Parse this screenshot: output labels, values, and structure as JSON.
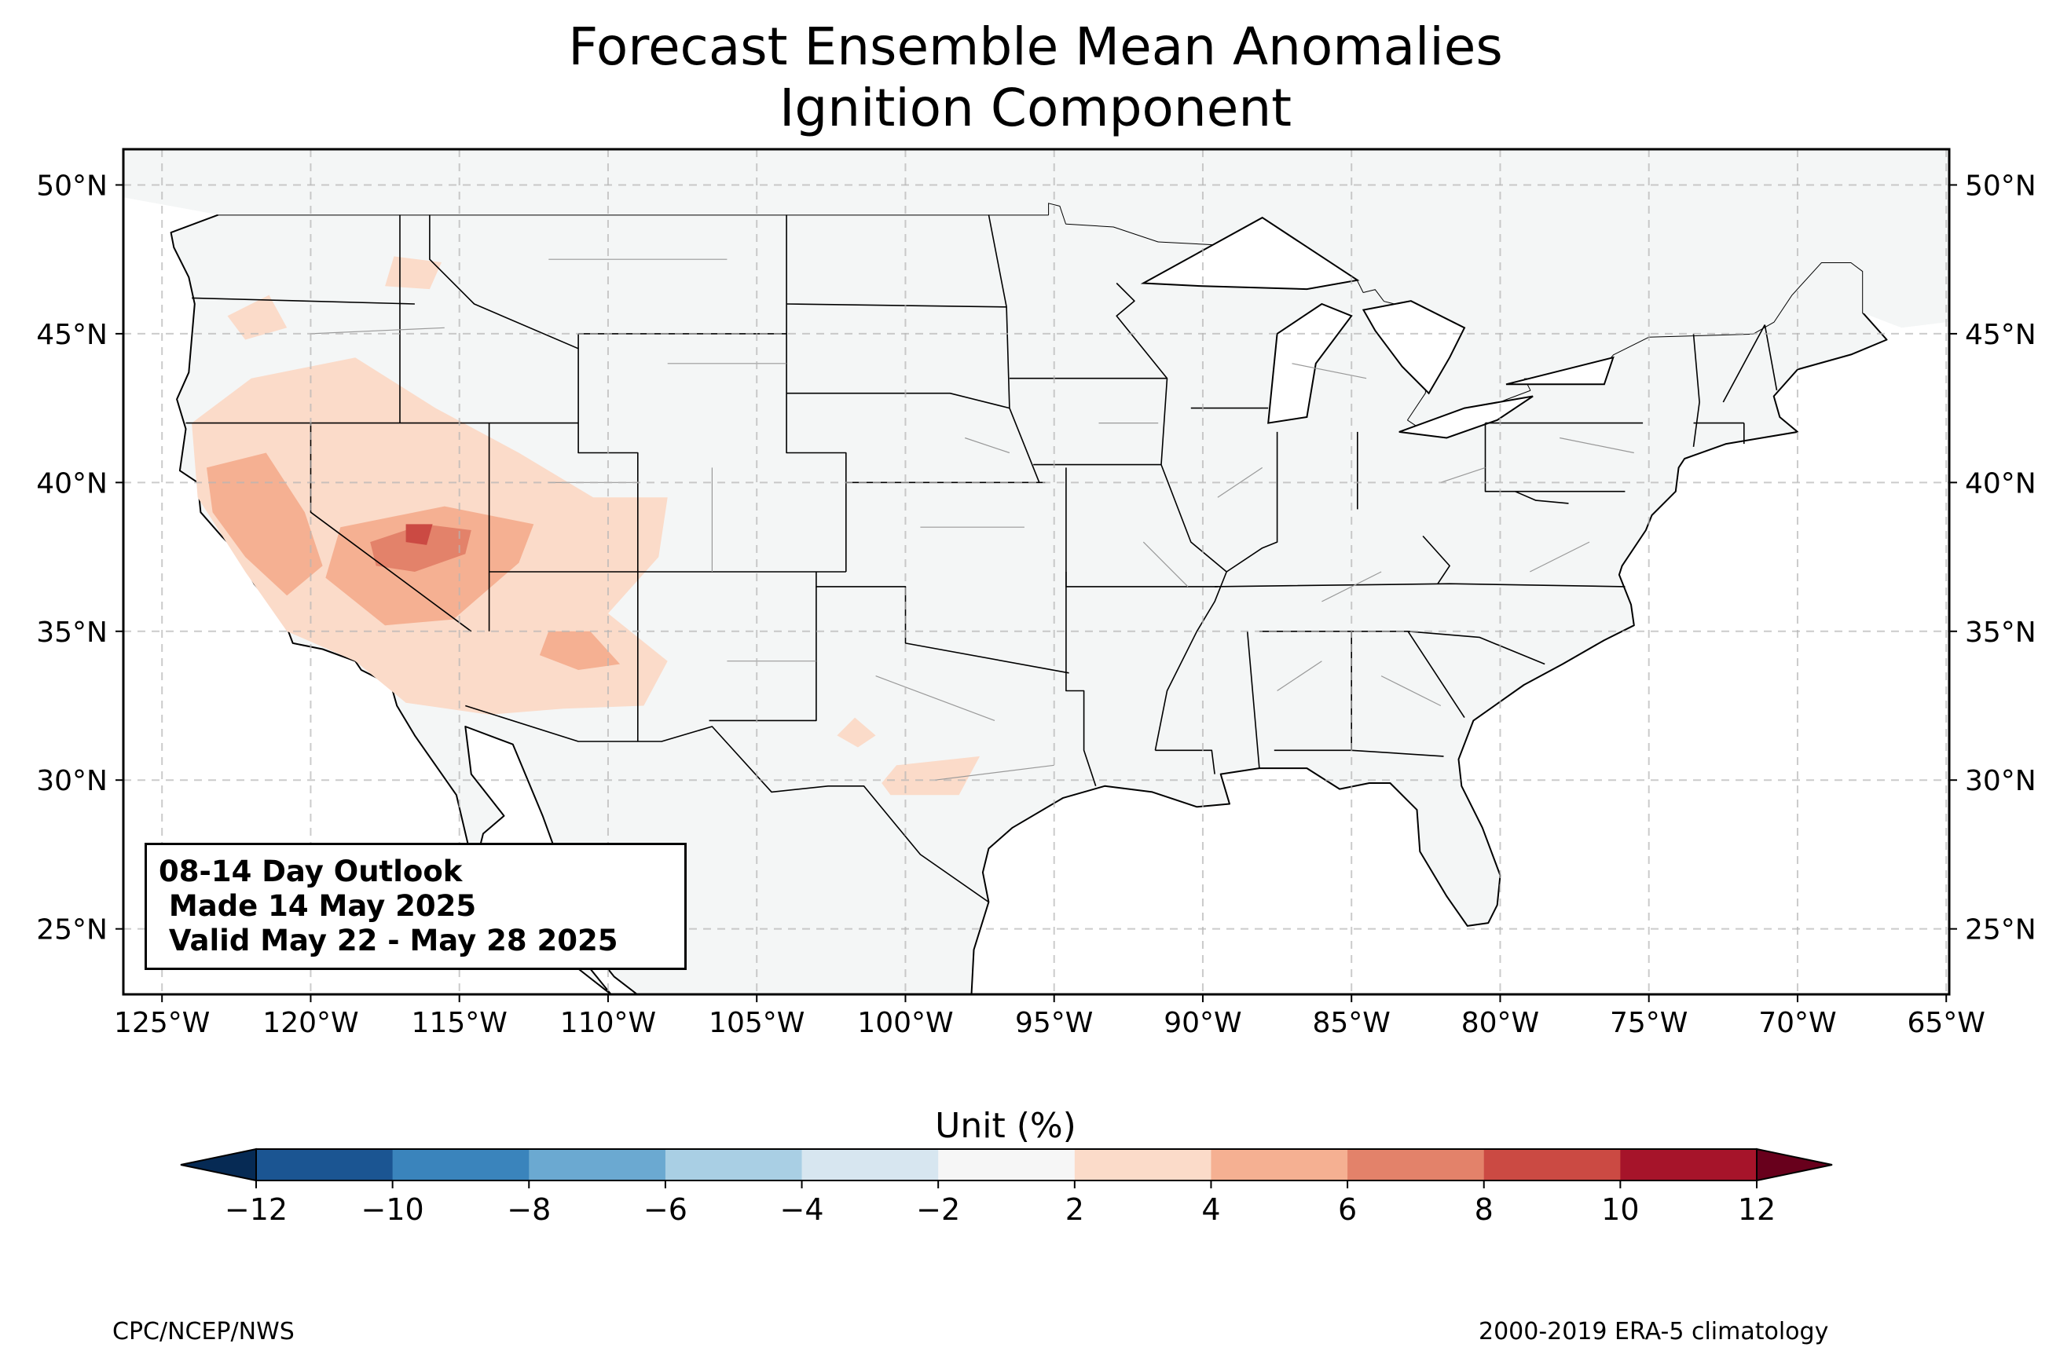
{
  "title_line1": "Forecast Ensemble Mean Anomalies",
  "title_line2": "Ignition Component",
  "map": {
    "extent": {
      "lon_min": -126.3,
      "lon_max": -64.9,
      "lat_min": 22.8,
      "lat_max": 51.2
    },
    "lat_ticks": [
      {
        "value": 50,
        "label": "50°N"
      },
      {
        "value": 45,
        "label": "45°N"
      },
      {
        "value": 40,
        "label": "40°N"
      },
      {
        "value": 35,
        "label": "35°N"
      },
      {
        "value": 30,
        "label": "30°N"
      },
      {
        "value": 25,
        "label": "25°N"
      }
    ],
    "lon_ticks": [
      {
        "value": -125,
        "label": "125°W"
      },
      {
        "value": -120,
        "label": "120°W"
      },
      {
        "value": -115,
        "label": "115°W"
      },
      {
        "value": -110,
        "label": "110°W"
      },
      {
        "value": -105,
        "label": "105°W"
      },
      {
        "value": -100,
        "label": "100°W"
      },
      {
        "value": -95,
        "label": "95°W"
      },
      {
        "value": -90,
        "label": "90°W"
      },
      {
        "value": -85,
        "label": "85°W"
      },
      {
        "value": -80,
        "label": "80°W"
      },
      {
        "value": -75,
        "label": "75°W"
      },
      {
        "value": -70,
        "label": "70°W"
      },
      {
        "value": -65,
        "label": "65°W"
      }
    ],
    "anomaly_regions": [
      {
        "name": "california-great-basin",
        "level": "2-4",
        "lonlat": [
          [
            -124.0,
            42.0
          ],
          [
            -122.0,
            43.5
          ],
          [
            -118.5,
            44.2
          ],
          [
            -115.8,
            42.5
          ],
          [
            -113.0,
            41.0
          ],
          [
            -110.5,
            39.5
          ],
          [
            -108.0,
            39.5
          ],
          [
            -108.3,
            37.5
          ],
          [
            -110.0,
            35.6
          ],
          [
            -108.0,
            34.0
          ],
          [
            -108.8,
            32.5
          ],
          [
            -111.5,
            32.4
          ],
          [
            -114.0,
            32.2
          ],
          [
            -116.8,
            32.6
          ],
          [
            -118.5,
            34.0
          ],
          [
            -120.8,
            35.0
          ],
          [
            -122.2,
            37.0
          ],
          [
            -123.8,
            39.5
          ]
        ]
      },
      {
        "name": "oregon-patch",
        "level": "2-4",
        "lonlat": [
          [
            -122.8,
            45.6
          ],
          [
            -121.4,
            46.3
          ],
          [
            -120.8,
            45.2
          ],
          [
            -122.2,
            44.8
          ]
        ]
      },
      {
        "name": "idaho-patch",
        "level": "2-4",
        "lonlat": [
          [
            -117.2,
            47.6
          ],
          [
            -115.6,
            47.4
          ],
          [
            -116.0,
            46.5
          ],
          [
            -117.5,
            46.6
          ]
        ]
      },
      {
        "name": "west-texas-1",
        "level": "2-4",
        "lonlat": [
          [
            -101.7,
            32.1
          ],
          [
            -101.0,
            31.5
          ],
          [
            -101.6,
            31.1
          ],
          [
            -102.3,
            31.5
          ]
        ]
      },
      {
        "name": "west-texas-2",
        "level": "2-4",
        "lonlat": [
          [
            -100.3,
            30.5
          ],
          [
            -97.5,
            30.8
          ],
          [
            -98.2,
            29.5
          ],
          [
            -100.5,
            29.5
          ],
          [
            -100.8,
            29.9
          ]
        ]
      },
      {
        "name": "sierra-central-valley",
        "level": "4-6",
        "lonlat": [
          [
            -123.5,
            40.5
          ],
          [
            -121.5,
            41.0
          ],
          [
            -120.2,
            39.0
          ],
          [
            -119.6,
            37.2
          ],
          [
            -120.8,
            36.2
          ],
          [
            -122.2,
            37.5
          ],
          [
            -123.3,
            39.0
          ]
        ]
      },
      {
        "name": "southern-nevada",
        "level": "4-6",
        "lonlat": [
          [
            -119.0,
            38.5
          ],
          [
            -115.5,
            39.2
          ],
          [
            -112.5,
            38.6
          ],
          [
            -113.0,
            37.3
          ],
          [
            -115.2,
            35.4
          ],
          [
            -117.5,
            35.2
          ],
          [
            -119.5,
            36.8
          ]
        ]
      },
      {
        "name": "southern-nevada-core",
        "level": "6-8",
        "lonlat": [
          [
            -118.0,
            38.0
          ],
          [
            -116.2,
            38.6
          ],
          [
            -114.6,
            38.4
          ],
          [
            -114.8,
            37.6
          ],
          [
            -116.5,
            37.0
          ],
          [
            -117.8,
            37.2
          ]
        ]
      },
      {
        "name": "southern-nevada-max",
        "level": "8-10",
        "lonlat": [
          [
            -116.8,
            38.6
          ],
          [
            -115.9,
            38.6
          ],
          [
            -116.1,
            37.9
          ],
          [
            -116.8,
            38.0
          ]
        ]
      },
      {
        "name": "arizona-core",
        "level": "4-6",
        "lonlat": [
          [
            -112.0,
            35.0
          ],
          [
            -110.6,
            35.0
          ],
          [
            -109.6,
            33.9
          ],
          [
            -111.0,
            33.7
          ],
          [
            -112.3,
            34.2
          ]
        ]
      }
    ],
    "color_levels": {
      "2-4": "#fbdbc9",
      "4-6": "#f5b092",
      "6-8": "#e3826a",
      "8-10": "#cb4a43",
      "10-12": "#a6142a"
    }
  },
  "info_box": {
    "line1": "08-14 Day Outlook",
    "line2": " Made 14 May 2025",
    "line3": " Valid May 22 - May 28 2025"
  },
  "colorbar": {
    "label": "Unit (%)",
    "ticks": [
      "−12",
      "−10",
      "−8",
      "−6",
      "−4",
      "−2",
      "2",
      "4",
      "6",
      "8",
      "10",
      "12"
    ],
    "colors": [
      "#1b5592",
      "#3a84bc",
      "#6ba9d1",
      "#a9cfe4",
      "#d7e6f0",
      "#f6f6f6",
      "#fbdbc9",
      "#f5b092",
      "#e3826a",
      "#cb4a43",
      "#a6142a"
    ],
    "under_color": "#062a54",
    "over_color": "#68001c"
  },
  "footer_left": "CPC/NCEP/NWS",
  "footer_right": "2000-2019 ERA-5 climatology"
}
